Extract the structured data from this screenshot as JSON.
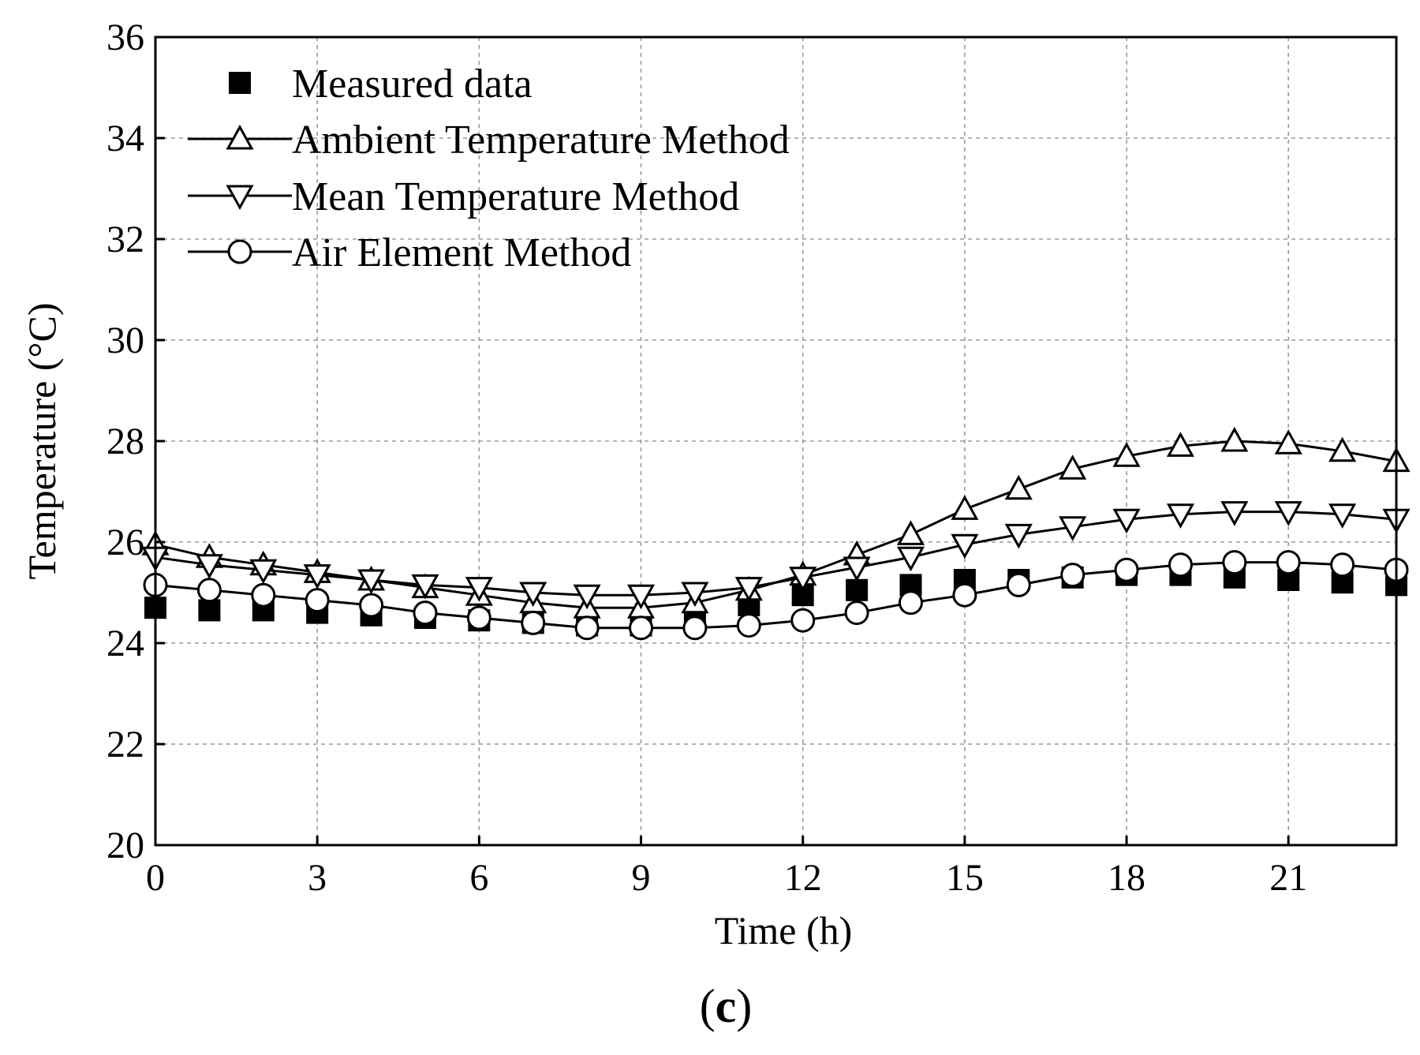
{
  "chart_data": {
    "type": "line",
    "title": "",
    "xlabel": "Time (h)",
    "ylabel": "Temperature (°C)",
    "xlim": [
      0,
      23
    ],
    "ylim": [
      20,
      36
    ],
    "x_ticks": [
      0,
      3,
      6,
      9,
      12,
      15,
      18,
      21
    ],
    "y_ticks": [
      20,
      22,
      24,
      26,
      28,
      30,
      32,
      34,
      36
    ],
    "grid": true,
    "legend_position": "top-left",
    "x": [
      0,
      1,
      2,
      3,
      4,
      5,
      6,
      7,
      8,
      9,
      10,
      11,
      12,
      13,
      14,
      15,
      16,
      17,
      18,
      19,
      20,
      21,
      22,
      23
    ],
    "series": [
      {
        "name": "Measured data",
        "marker": "filled-square",
        "line": false,
        "values": [
          24.7,
          24.65,
          24.65,
          24.6,
          24.55,
          24.5,
          24.45,
          24.4,
          24.35,
          24.35,
          24.45,
          24.75,
          24.95,
          25.05,
          25.15,
          25.25,
          25.25,
          25.3,
          25.35,
          25.35,
          25.3,
          25.25,
          25.2,
          25.15
        ]
      },
      {
        "name": "Ambient Temperature Method",
        "marker": "open-triangle-up",
        "line": true,
        "values": [
          25.95,
          25.7,
          25.55,
          25.4,
          25.25,
          25.1,
          24.95,
          24.8,
          24.7,
          24.7,
          24.8,
          25.05,
          25.35,
          25.75,
          26.15,
          26.65,
          27.05,
          27.45,
          27.7,
          27.9,
          28.0,
          27.95,
          27.8,
          27.6
        ]
      },
      {
        "name": "Mean Temperature Method",
        "marker": "open-triangle-down",
        "line": true,
        "values": [
          25.7,
          25.55,
          25.45,
          25.35,
          25.25,
          25.15,
          25.1,
          25.0,
          24.95,
          24.95,
          25.0,
          25.1,
          25.3,
          25.5,
          25.7,
          25.95,
          26.15,
          26.3,
          26.45,
          26.55,
          26.6,
          26.6,
          26.55,
          26.45
        ]
      },
      {
        "name": "Air Element Method",
        "marker": "open-circle",
        "line": true,
        "values": [
          25.15,
          25.05,
          24.95,
          24.85,
          24.75,
          24.6,
          24.5,
          24.4,
          24.3,
          24.3,
          24.3,
          24.35,
          24.45,
          24.6,
          24.8,
          24.95,
          25.15,
          25.35,
          25.45,
          25.55,
          25.6,
          25.6,
          25.55,
          25.45
        ]
      }
    ],
    "panel_label": {
      "open": "(",
      "letter": "c",
      "close": ")"
    }
  }
}
